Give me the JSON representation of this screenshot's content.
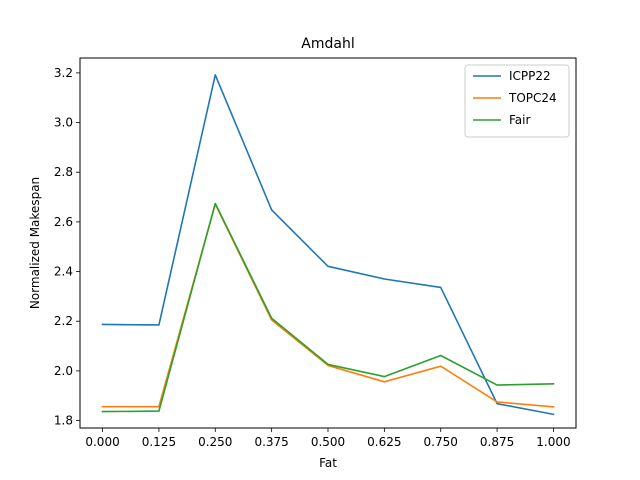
{
  "chart_data": {
    "type": "line",
    "title": "Amdahl",
    "xlabel": "Fat",
    "ylabel": "Normalized Makespan",
    "x": [
      0.0,
      0.125,
      0.25,
      0.375,
      0.5,
      0.625,
      0.75,
      0.875,
      1.0
    ],
    "x_tick_labels": [
      "0.000",
      "0.125",
      "0.250",
      "0.375",
      "0.500",
      "0.625",
      "0.750",
      "0.875",
      "1.000"
    ],
    "y_ticks": [
      1.8,
      2.0,
      2.2,
      2.4,
      2.6,
      2.8,
      3.0,
      3.2
    ],
    "y_tick_labels": [
      "1.8",
      "2.0",
      "2.2",
      "2.4",
      "2.6",
      "2.8",
      "3.0",
      "3.2"
    ],
    "xlim": [
      -0.05,
      1.05
    ],
    "ylim": [
      1.77,
      3.26
    ],
    "grid": false,
    "legend_position": "top-right",
    "series": [
      {
        "name": "ICPP22",
        "color": "#1f77b4",
        "values": [
          2.187,
          2.185,
          3.192,
          2.648,
          2.421,
          2.37,
          2.336,
          1.868,
          1.825
        ]
      },
      {
        "name": "TOPC24",
        "color": "#ff7f0e",
        "values": [
          1.856,
          1.856,
          2.672,
          2.205,
          2.022,
          1.956,
          2.019,
          1.875,
          1.855
        ]
      },
      {
        "name": "Fair",
        "color": "#2ca02c",
        "values": [
          1.836,
          1.838,
          2.674,
          2.212,
          2.026,
          1.977,
          2.062,
          1.943,
          1.948
        ]
      }
    ]
  }
}
